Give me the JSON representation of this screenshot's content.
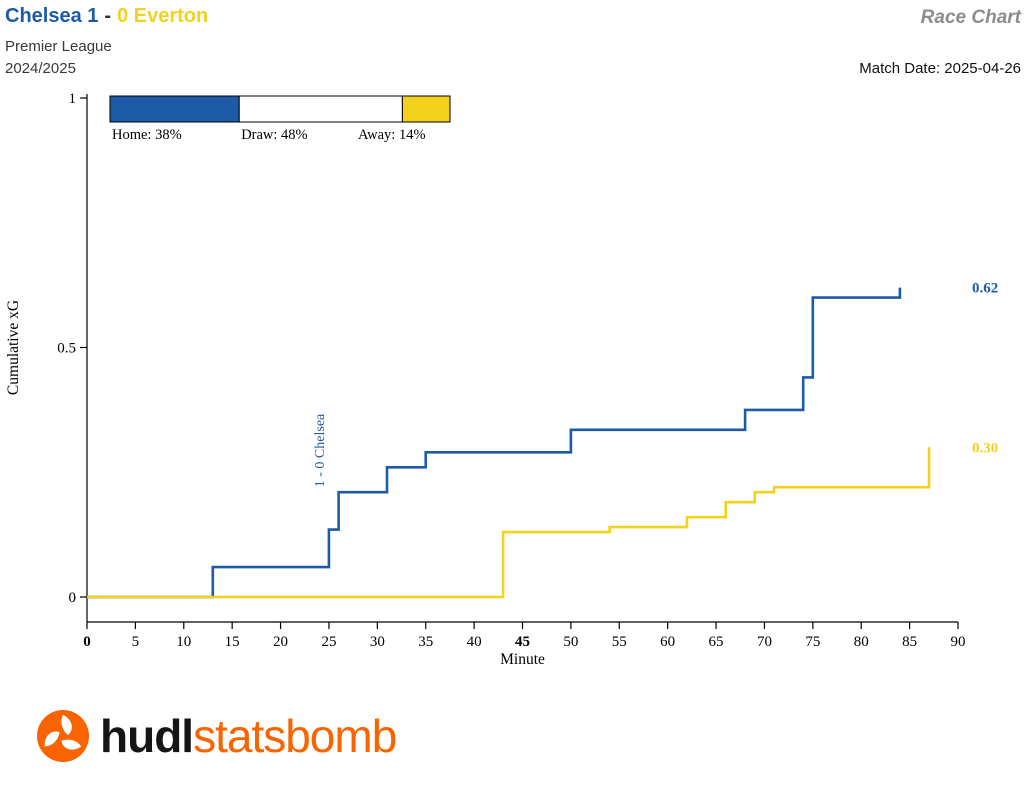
{
  "header": {
    "home_team": "Chelsea 1",
    "separator": "-",
    "away_team": "0 Everton",
    "chart_type": "Race Chart",
    "competition": "Premier League",
    "season": "2024/2025",
    "match_date": "Match Date: 2025-04-26"
  },
  "colors": {
    "home": "#1d5ba6",
    "away": "#f2d21d",
    "muted_gray": "#8d8d8d",
    "brand_orange": "#f96300",
    "axis": "#000000"
  },
  "probability": {
    "home_label": "Home: 38%",
    "draw_label": "Draw: 48%",
    "away_label": "Away: 14%",
    "home_pct": 38,
    "draw_pct": 48,
    "away_pct": 14
  },
  "chart_data": {
    "type": "line",
    "step": true,
    "title": "Cumulative xG race chart",
    "xlabel": "Minute",
    "ylabel": "Cumulative xG",
    "xlim": [
      0,
      90
    ],
    "ylim": [
      0,
      1
    ],
    "xticks": [
      0,
      5,
      10,
      15,
      20,
      25,
      30,
      35,
      40,
      45,
      50,
      55,
      60,
      65,
      70,
      75,
      80,
      85,
      90
    ],
    "bold_xticks": [
      0,
      45
    ],
    "yticks": [
      0,
      0.5,
      1
    ],
    "grid": false,
    "legend_position": "none",
    "series": [
      {
        "name": "Chelsea",
        "color": "#1d5ba6",
        "end_label": "0.62",
        "final_xg": 0.62,
        "points": [
          [
            0,
            0
          ],
          [
            13,
            0.06
          ],
          [
            25,
            0.135
          ],
          [
            26,
            0.21
          ],
          [
            31,
            0.26
          ],
          [
            35,
            0.29
          ],
          [
            50,
            0.335
          ],
          [
            68,
            0.375
          ],
          [
            74,
            0.44
          ],
          [
            75,
            0.6
          ],
          [
            84,
            0.62
          ]
        ]
      },
      {
        "name": "Everton",
        "color": "#f2d21d",
        "end_label": "0.30",
        "final_xg": 0.3,
        "points": [
          [
            0,
            0
          ],
          [
            43,
            0.13
          ],
          [
            54,
            0.14
          ],
          [
            62,
            0.16
          ],
          [
            66,
            0.19
          ],
          [
            69,
            0.21
          ],
          [
            71,
            0.22
          ],
          [
            87,
            0.3
          ]
        ]
      }
    ],
    "annotation": {
      "text": "1 - 0 Chelsea",
      "x": 25,
      "y": 0.22,
      "color": "#1d5ba6"
    }
  },
  "logo": {
    "hudl": "hudl",
    "statsbomb": "statsbomb"
  }
}
